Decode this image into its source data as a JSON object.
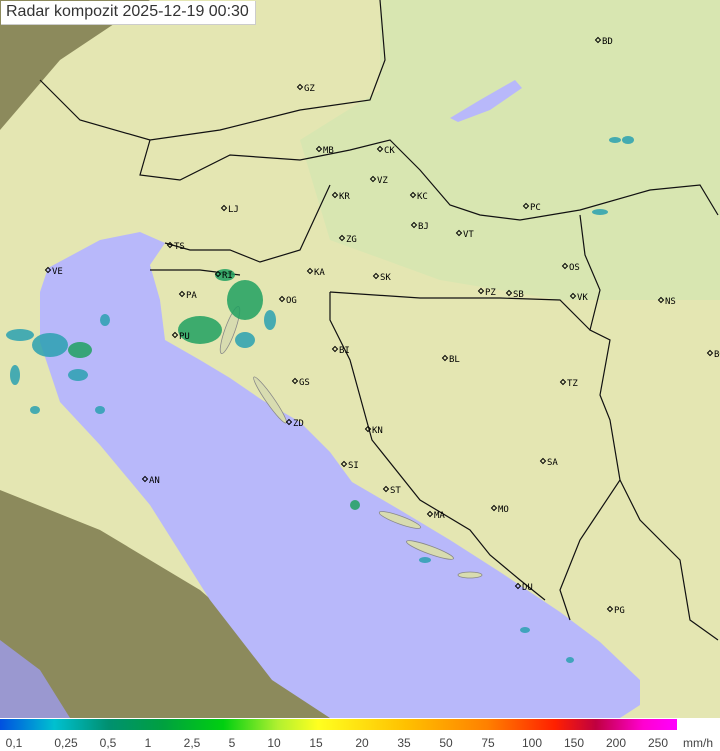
{
  "title": "Radar kompozit  2025-12-19   00:30",
  "legend": {
    "labels": [
      "0,1",
      "0,25",
      "0,5",
      "1",
      "2,5",
      "5",
      "10",
      "15",
      "20",
      "35",
      "50",
      "75",
      "100",
      "150",
      "200",
      "250"
    ],
    "unit": "mm/h"
  },
  "cities": [
    "GZ",
    "MB",
    "CK",
    "VZ",
    "KR",
    "KC",
    "PC",
    "LJ",
    "ZG",
    "BJ",
    "VT",
    "TS",
    "VE",
    "KA",
    "SK",
    "OS",
    "RI",
    "PA",
    "OG",
    "PZ",
    "SB",
    "VK",
    "NS",
    "PU",
    "BD",
    "BG",
    "BI",
    "BL",
    "TZ",
    "GS",
    "ZD",
    "KN",
    "SA",
    "SI",
    "AN",
    "ST",
    "MA",
    "MO",
    "DU",
    "PG"
  ],
  "colors": {
    "sea": "#b8b8fa",
    "coverage": "#e6e8b4",
    "outside": "#8c8a5c",
    "radar_low": "#2aa0b0",
    "radar_mid": "#20a060"
  }
}
